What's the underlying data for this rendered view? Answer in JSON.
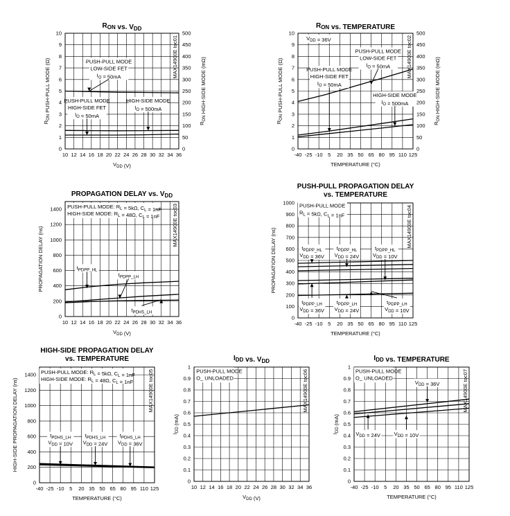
{
  "chart_data": [
    {
      "id": "ron_vdd",
      "type": "line",
      "title": "RON vs. VDD",
      "xlabel": "VDD (V)",
      "ylabel": "RON PUSH-PULL MODE (Ω)",
      "ylabel2": "RON HIGH-SIDE MODE (mΩ)",
      "part_code": "MAX14900E toc01",
      "xlim": [
        10,
        36
      ],
      "xticks": [
        10,
        12,
        14,
        16,
        18,
        20,
        22,
        24,
        26,
        28,
        30,
        32,
        34,
        36
      ],
      "ylim": [
        0,
        10
      ],
      "yticks": [
        0,
        1,
        2,
        3,
        4,
        5,
        6,
        7,
        8,
        9,
        10
      ],
      "y2lim": [
        0,
        500
      ],
      "y2ticks": [
        0,
        50,
        100,
        150,
        200,
        250,
        300,
        350,
        400,
        450,
        500
      ],
      "grid": true,
      "series": [
        {
          "x": [
            10,
            16,
            22,
            28,
            36
          ],
          "y": [
            5.0,
            4.95,
            4.9,
            4.88,
            4.85
          ]
        },
        {
          "x": [
            10,
            16,
            22,
            28,
            36
          ],
          "y": [
            1.6,
            1.58,
            1.57,
            1.58,
            1.6
          ]
        },
        {
          "x": [
            10,
            16,
            22,
            28,
            36
          ],
          "y": [
            1.2,
            1.2,
            1.2,
            1.22,
            1.28
          ]
        }
      ],
      "annotations": [
        {
          "lines": [
            "PUSH-PULL MODE",
            "LOW-SIDE FET",
            "IO = 50mA"
          ],
          "at": [
            20,
            7.4
          ],
          "arrow_to": [
            15.5,
            5.0
          ]
        },
        {
          "lines": [
            "PUSH-PULL MODE",
            "HIGH-SIDE FET",
            "IO = 50mA"
          ],
          "at": [
            15,
            4.0
          ],
          "arrow_to": [
            15.0,
            1.2
          ]
        },
        {
          "lines": [
            "HIGH-SIDE MODE",
            "IO = 500mA"
          ],
          "at": [
            29,
            4.0
          ],
          "arrow_to": [
            29.0,
            1.6
          ]
        }
      ]
    },
    {
      "id": "ron_temp",
      "type": "line",
      "title": "RON vs. TEMPERATURE",
      "xlabel": "TEMPERATURE (°C)",
      "ylabel": "RON PUSH-PULL MODE (Ω)",
      "ylabel2": "RON HIGH-SIDE MODE (mΩ)",
      "part_code": "MAX14900E toc02",
      "xlim": [
        -40,
        125
      ],
      "xticks": [
        -40,
        -25,
        -10,
        5,
        20,
        35,
        50,
        65,
        80,
        95,
        110,
        125
      ],
      "ylim": [
        0,
        10
      ],
      "yticks": [
        0,
        1,
        2,
        3,
        4,
        5,
        6,
        7,
        8,
        9,
        10
      ],
      "y2lim": [
        0,
        500
      ],
      "y2ticks": [
        0,
        50,
        100,
        150,
        200,
        250,
        300,
        350,
        400,
        450,
        500
      ],
      "grid": true,
      "series": [
        {
          "x": [
            -40,
            0,
            40,
            80,
            125
          ],
          "y": [
            4.1,
            4.7,
            5.4,
            6.1,
            6.9
          ]
        },
        {
          "x": [
            -40,
            0,
            40,
            80,
            125
          ],
          "y": [
            1.2,
            1.5,
            1.85,
            2.2,
            2.6
          ]
        },
        {
          "x": [
            -40,
            0,
            40,
            80,
            125
          ],
          "y": [
            1.05,
            1.3,
            1.55,
            1.8,
            2.1
          ]
        }
      ],
      "annotations": [
        {
          "lines": [
            "VDD = 36V"
          ],
          "at": [
            -28,
            9.4
          ]
        },
        {
          "lines": [
            "PUSH-PULL MODE",
            "LOW-SIDE FET",
            "IO = 50mA"
          ],
          "at": [
            75,
            8.3
          ],
          "arrow_to": [
            65,
            5.6
          ]
        },
        {
          "lines": [
            "PUSH-PULL MODE",
            "HIGH-SIDE FET",
            "IO = 50mA"
          ],
          "at": [
            5,
            6.7
          ],
          "arrow_to": [
            5,
            1.5
          ]
        },
        {
          "lines": [
            "HIGH-SIDE MODE",
            "IO = 500mA"
          ],
          "at": [
            99,
            4.5
          ],
          "arrow_to": [
            99,
            2.0
          ]
        }
      ]
    },
    {
      "id": "prop_vdd",
      "type": "line",
      "title": "PROPAGATION DELAY vs. VDD",
      "xlabel": "VDD (V)",
      "ylabel": "PROPAGATION DELAY (ns)",
      "part_code": "MAX14900E toc03",
      "xlim": [
        10,
        36
      ],
      "xticks": [
        10,
        12,
        14,
        16,
        18,
        20,
        22,
        24,
        26,
        28,
        30,
        32,
        34,
        36
      ],
      "ylim": [
        0,
        1500
      ],
      "yticks": [
        0,
        200,
        400,
        600,
        800,
        1000,
        1200,
        1400
      ],
      "grid": true,
      "series": [
        {
          "x": [
            10,
            16,
            22,
            28,
            36
          ],
          "y": [
            350,
            390,
            420,
            440,
            460
          ]
        },
        {
          "x": [
            10,
            16,
            22,
            28,
            36
          ],
          "y": [
            190,
            215,
            240,
            265,
            290
          ]
        },
        {
          "x": [
            10,
            16,
            22,
            28,
            36
          ],
          "y": [
            180,
            195,
            205,
            210,
            215
          ]
        }
      ],
      "annotations": [
        {
          "lines": [
            "PUSH-PULL MODE: RL = 5kΩ, CL = 1nF",
            "HIGH-SIDE MODE: RL = 48Ω, CL = 1nF"
          ],
          "at": [
            10.5,
            1410
          ]
        },
        {
          "lines": [
            "tPDPP_HL"
          ],
          "at": [
            15,
            610
          ],
          "arrow_to": [
            15,
            370
          ]
        },
        {
          "lines": [
            "tPDPP_LH"
          ],
          "at": [
            24.5,
            520
          ],
          "arrow_to": [
            22.5,
            240
          ]
        },
        {
          "lines": [
            "tPDHS_LH"
          ],
          "at": [
            27.5,
            60
          ],
          "arrow_to": [
            32,
            220
          ]
        }
      ]
    },
    {
      "id": "pp_prop_temp",
      "type": "line",
      "title": "PUSH-PULL PROPAGATION DELAY",
      "subtitle": "vs. TEMPERATURE",
      "xlabel": "TEMPERATURE (°C)",
      "ylabel": "PROPAGATION DELAY (ns)",
      "part_code": "MAX14900E toc04",
      "xlim": [
        -40,
        125
      ],
      "xticks": [
        -40,
        -25,
        -10,
        5,
        20,
        35,
        50,
        65,
        80,
        95,
        110,
        125
      ],
      "ylim": [
        0,
        1000
      ],
      "yticks": [
        0,
        100,
        200,
        300,
        400,
        500,
        600,
        700,
        800,
        900,
        1000
      ],
      "grid": true,
      "series": [
        {
          "x": [
            -40,
            125
          ],
          "y": [
            475,
            500
          ]
        },
        {
          "x": [
            -40,
            125
          ],
          "y": [
            445,
            465
          ]
        },
        {
          "x": [
            -40,
            125
          ],
          "y": [
            410,
            430
          ]
        },
        {
          "x": [
            -40,
            125
          ],
          "y": [
            325,
            345
          ]
        },
        {
          "x": [
            -40,
            125
          ],
          "y": [
            295,
            330
          ]
        },
        {
          "x": [
            -40,
            125
          ],
          "y": [
            195,
            215
          ]
        }
      ],
      "annotations": [
        {
          "lines": [
            "PUSH-PULL MODE",
            "RL = 5kΩ, CL = 1nF"
          ],
          "at": [
            -38,
            960
          ]
        },
        {
          "lines": [
            "tPDPP_HL",
            "VDD = 36V"
          ],
          "at": [
            -20,
            590
          ],
          "arrow_to": [
            -20,
            480
          ]
        },
        {
          "lines": [
            "tPDPP_HL",
            "VDD = 24V"
          ],
          "at": [
            30,
            590
          ],
          "arrow_to": [
            30,
            445
          ]
        },
        {
          "lines": [
            "tPDPP_HL",
            "VDD = 10V"
          ],
          "at": [
            85,
            590
          ],
          "arrow_to": [
            85,
            330
          ]
        },
        {
          "lines": [
            "tPDPP_LH",
            "VDD = 36V"
          ],
          "at": [
            -20,
            120
          ],
          "arrow_to": [
            -20,
            300
          ]
        },
        {
          "lines": [
            "tPDPP_LH",
            "VDD = 24V"
          ],
          "at": [
            30,
            120
          ],
          "arrow_to": [
            30,
            200
          ]
        },
        {
          "lines": [
            "tPDPP_LH",
            "VDD = 10V"
          ],
          "at": [
            102,
            120
          ],
          "arrow_to": [
            65,
            230
          ]
        }
      ]
    },
    {
      "id": "hs_prop_temp",
      "type": "line",
      "title": "HIGH-SIDE PROPAGATION DELAY",
      "subtitle": "vs. TEMPERATURE",
      "xlabel": "TEMPERATURE (°C)",
      "ylabel": "HIGH-SIDE PROPAGATION DELAY (ns)",
      "part_code": "MAX14900E toc05",
      "xlim": [
        -40,
        125
      ],
      "xticks": [
        -40,
        -25,
        -10,
        5,
        20,
        35,
        50,
        65,
        80,
        95,
        110,
        125
      ],
      "ylim": [
        0,
        1500
      ],
      "yticks": [
        0,
        200,
        400,
        600,
        800,
        1000,
        1200,
        1400
      ],
      "grid": true,
      "series": [
        {
          "x": [
            -40,
            125
          ],
          "y": [
            250,
            205
          ]
        },
        {
          "x": [
            -40,
            125
          ],
          "y": [
            240,
            200
          ]
        },
        {
          "x": [
            -40,
            125
          ],
          "y": [
            232,
            195
          ]
        }
      ],
      "annotations": [
        {
          "lines": [
            "PUSH-PULL MODE: RL = 5kΩ, CL = 1nF",
            "HIGH-SIDE MODE: RL = 48Ω, CL = 1nF"
          ],
          "at": [
            -38,
            1410
          ]
        },
        {
          "lines": [
            "tPDHS_LH",
            "VDD = 10V"
          ],
          "at": [
            -10,
            590
          ],
          "arrow_to": [
            -10,
            235
          ]
        },
        {
          "lines": [
            "tPDHS_LH",
            "VDD = 24V"
          ],
          "at": [
            40,
            590
          ],
          "arrow_to": [
            40,
            225
          ]
        },
        {
          "lines": [
            "tPDHS_LH",
            "VDD = 36V"
          ],
          "at": [
            90,
            590
          ],
          "arrow_to": [
            90,
            210
          ]
        }
      ]
    },
    {
      "id": "idd_vdd",
      "type": "line",
      "title": "IDD vs. VDD",
      "xlabel": "VDD (V)",
      "ylabel": "IDD (mA)",
      "part_code": "MAX14900E toc06",
      "xlim": [
        10,
        36
      ],
      "xticks": [
        10,
        12,
        14,
        16,
        18,
        20,
        22,
        24,
        26,
        28,
        30,
        32,
        34,
        36
      ],
      "ylim": [
        0,
        1.0
      ],
      "yticks": [
        0,
        0.1,
        0.2,
        0.3,
        0.4,
        0.5,
        0.6,
        0.7,
        0.8,
        0.9,
        1.0
      ],
      "grid": true,
      "series": [
        {
          "x": [
            10,
            36
          ],
          "y": [
            0.57,
            0.67
          ]
        }
      ],
      "annotations": [
        {
          "lines": [
            "PUSH-PULL MODE",
            "O_ UNLOADED"
          ],
          "at": [
            10.5,
            0.95
          ]
        }
      ]
    },
    {
      "id": "idd_temp",
      "type": "line",
      "title": "IDD vs. TEMPERATURE",
      "xlabel": "TEMPERATURE (°C)",
      "ylabel": "IDD (mA)",
      "part_code": "MAX14900E toc07",
      "xlim": [
        -40,
        125
      ],
      "xticks": [
        -40,
        -25,
        -10,
        5,
        20,
        35,
        50,
        65,
        80,
        95,
        110,
        125
      ],
      "ylim": [
        0,
        1.0
      ],
      "yticks": [
        0,
        0.1,
        0.2,
        0.3,
        0.4,
        0.5,
        0.6,
        0.7,
        0.8,
        0.9,
        1.0
      ],
      "grid": true,
      "series": [
        {
          "x": [
            -40,
            125
          ],
          "y": [
            0.61,
            0.72
          ]
        },
        {
          "x": [
            -40,
            125
          ],
          "y": [
            0.59,
            0.68
          ]
        },
        {
          "x": [
            -40,
            125
          ],
          "y": [
            0.56,
            0.64
          ]
        }
      ],
      "annotations": [
        {
          "lines": [
            "PUSH-PULL MODE",
            "O_ UNLOADED"
          ],
          "at": [
            -38,
            0.95
          ]
        },
        {
          "lines": [
            "VDD = 36V"
          ],
          "at": [
            65,
            0.85
          ],
          "arrow_to": [
            65,
            0.69
          ]
        },
        {
          "lines": [
            "VDD = 24V"
          ],
          "at": [
            -20,
            0.4
          ],
          "arrow_to": [
            -20,
            0.585
          ]
        },
        {
          "lines": [
            "VDD = 10V"
          ],
          "at": [
            35,
            0.4
          ],
          "arrow_to": [
            35,
            0.575
          ]
        }
      ]
    }
  ]
}
